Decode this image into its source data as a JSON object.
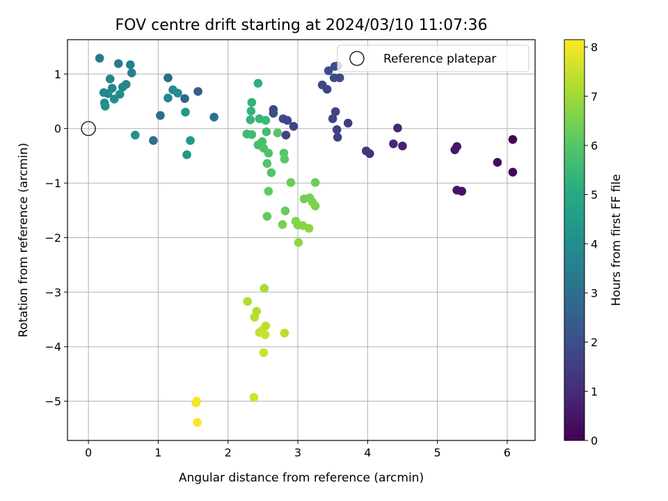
{
  "chart_data": {
    "type": "scatter",
    "title": "FOV centre drift starting at 2024/03/10 11:07:36",
    "xlabel": "Angular distance from reference (arcmin)",
    "ylabel": "Rotation from reference (arcmin)",
    "xlim": [
      -0.3,
      6.4
    ],
    "ylim": [
      -5.72,
      1.63
    ],
    "xticks": [
      0,
      1,
      2,
      3,
      4,
      5,
      6
    ],
    "yticks": [
      -5,
      -4,
      -3,
      -2,
      -1,
      0,
      1
    ],
    "grid": true,
    "legend": {
      "placement": "top-right",
      "entries": [
        "Reference platepar"
      ]
    },
    "colorbar": {
      "label": "Hours from first FF file",
      "range": [
        0,
        8.15
      ],
      "ticks": [
        0,
        1,
        2,
        3,
        4,
        5,
        6,
        7,
        8
      ],
      "colormap": "viridis"
    },
    "reference": {
      "x": 0,
      "y": 0
    },
    "points": [
      {
        "x": 6.08,
        "y": -0.2,
        "c": 0.05
      },
      {
        "x": 6.08,
        "y": -0.8,
        "c": 0.1
      },
      {
        "x": 5.86,
        "y": -0.62,
        "c": 0.2
      },
      {
        "x": 5.35,
        "y": -1.15,
        "c": 0.4
      },
      {
        "x": 5.28,
        "y": -1.13,
        "c": 0.45
      },
      {
        "x": 5.28,
        "y": -0.33,
        "c": 0.5
      },
      {
        "x": 5.25,
        "y": -0.39,
        "c": 0.55
      },
      {
        "x": 4.5,
        "y": -0.32,
        "c": 0.8
      },
      {
        "x": 4.43,
        "y": 0.01,
        "c": 0.9
      },
      {
        "x": 4.37,
        "y": -0.28,
        "c": 1.0
      },
      {
        "x": 4.03,
        "y": -0.46,
        "c": 1.2
      },
      {
        "x": 3.98,
        "y": -0.41,
        "c": 1.3
      },
      {
        "x": 3.72,
        "y": 0.1,
        "c": 1.45
      },
      {
        "x": 3.57,
        "y": -0.16,
        "c": 1.55
      },
      {
        "x": 3.56,
        "y": -0.02,
        "c": 1.6
      },
      {
        "x": 3.5,
        "y": 0.18,
        "c": 1.65
      },
      {
        "x": 3.54,
        "y": 0.31,
        "c": 1.7
      },
      {
        "x": 3.42,
        "y": 0.72,
        "c": 1.75
      },
      {
        "x": 3.35,
        "y": 0.8,
        "c": 1.8
      },
      {
        "x": 3.52,
        "y": 0.93,
        "c": 1.85
      },
      {
        "x": 3.6,
        "y": 0.93,
        "c": 1.9
      },
      {
        "x": 3.44,
        "y": 1.06,
        "c": 1.95
      },
      {
        "x": 3.53,
        "y": 1.14,
        "c": 2.0
      },
      {
        "x": 3.57,
        "y": 1.15,
        "c": 2.05
      },
      {
        "x": 1.57,
        "y": 0.68,
        "c": 2.4
      },
      {
        "x": 1.38,
        "y": 0.55,
        "c": 2.6
      },
      {
        "x": 1.14,
        "y": 0.93,
        "c": 2.8
      },
      {
        "x": 1.03,
        "y": 0.24,
        "c": 2.9
      },
      {
        "x": 0.93,
        "y": -0.22,
        "c": 3.0
      },
      {
        "x": 1.8,
        "y": 0.21,
        "c": 3.1
      },
      {
        "x": 0.16,
        "y": 1.29,
        "c": 3.3
      },
      {
        "x": 0.43,
        "y": 1.19,
        "c": 3.4
      },
      {
        "x": 0.6,
        "y": 1.17,
        "c": 3.5
      },
      {
        "x": 0.62,
        "y": 1.02,
        "c": 3.55
      },
      {
        "x": 0.31,
        "y": 0.91,
        "c": 3.6
      },
      {
        "x": 0.54,
        "y": 0.81,
        "c": 3.65
      },
      {
        "x": 0.49,
        "y": 0.76,
        "c": 3.7
      },
      {
        "x": 0.34,
        "y": 0.74,
        "c": 3.75
      },
      {
        "x": 0.22,
        "y": 0.66,
        "c": 3.8
      },
      {
        "x": 0.28,
        "y": 0.64,
        "c": 3.85
      },
      {
        "x": 0.45,
        "y": 0.63,
        "c": 3.9
      },
      {
        "x": 0.37,
        "y": 0.54,
        "c": 3.95
      },
      {
        "x": 0.23,
        "y": 0.47,
        "c": 4.0
      },
      {
        "x": 0.24,
        "y": 0.41,
        "c": 4.05
      },
      {
        "x": 0.67,
        "y": -0.12,
        "c": 4.1
      },
      {
        "x": 1.14,
        "y": 0.56,
        "c": 3.8
      },
      {
        "x": 1.21,
        "y": 0.71,
        "c": 3.9
      },
      {
        "x": 1.28,
        "y": 0.65,
        "c": 4.0
      },
      {
        "x": 1.39,
        "y": 0.3,
        "c": 4.3
      },
      {
        "x": 1.46,
        "y": -0.22,
        "c": 4.35
      },
      {
        "x": 1.41,
        "y": -0.48,
        "c": 4.4
      },
      {
        "x": 2.43,
        "y": 0.83,
        "c": 5.2
      },
      {
        "x": 2.34,
        "y": 0.48,
        "c": 5.3
      },
      {
        "x": 2.33,
        "y": 0.32,
        "c": 5.35
      },
      {
        "x": 2.32,
        "y": 0.16,
        "c": 5.4
      },
      {
        "x": 2.45,
        "y": 0.18,
        "c": 5.45
      },
      {
        "x": 2.54,
        "y": 0.15,
        "c": 5.5
      },
      {
        "x": 2.27,
        "y": -0.1,
        "c": 5.55
      },
      {
        "x": 2.34,
        "y": -0.11,
        "c": 5.6
      },
      {
        "x": 2.55,
        "y": -0.06,
        "c": 5.65
      },
      {
        "x": 2.43,
        "y": -0.3,
        "c": 5.7
      },
      {
        "x": 2.49,
        "y": -0.24,
        "c": 5.75
      },
      {
        "x": 2.51,
        "y": -0.36,
        "c": 5.8
      },
      {
        "x": 2.58,
        "y": -0.45,
        "c": 5.85
      },
      {
        "x": 2.56,
        "y": -0.64,
        "c": 5.9
      },
      {
        "x": 2.62,
        "y": -0.81,
        "c": 5.95
      },
      {
        "x": 2.71,
        "y": -0.08,
        "c": 6.0
      },
      {
        "x": 2.8,
        "y": -0.45,
        "c": 6.05
      },
      {
        "x": 2.81,
        "y": -0.56,
        "c": 6.1
      },
      {
        "x": 2.58,
        "y": -1.15,
        "c": 6.15
      },
      {
        "x": 2.56,
        "y": -1.61,
        "c": 6.2
      },
      {
        "x": 2.82,
        "y": -1.51,
        "c": 6.25
      },
      {
        "x": 2.9,
        "y": -0.99,
        "c": 6.3
      },
      {
        "x": 3.25,
        "y": -0.99,
        "c": 6.35
      },
      {
        "x": 3.09,
        "y": -1.29,
        "c": 6.4
      },
      {
        "x": 3.17,
        "y": -1.27,
        "c": 6.45
      },
      {
        "x": 3.21,
        "y": -1.35,
        "c": 6.5
      },
      {
        "x": 3.25,
        "y": -1.42,
        "c": 6.55
      },
      {
        "x": 2.78,
        "y": -1.76,
        "c": 6.5
      },
      {
        "x": 2.97,
        "y": -1.7,
        "c": 6.6
      },
      {
        "x": 3.0,
        "y": -1.77,
        "c": 6.65
      },
      {
        "x": 3.07,
        "y": -1.78,
        "c": 6.7
      },
      {
        "x": 3.16,
        "y": -1.83,
        "c": 6.75
      },
      {
        "x": 3.01,
        "y": -2.09,
        "c": 6.8
      },
      {
        "x": 2.52,
        "y": -2.93,
        "c": 7.1
      },
      {
        "x": 2.28,
        "y": -3.17,
        "c": 7.2
      },
      {
        "x": 2.41,
        "y": -3.35,
        "c": 7.25
      },
      {
        "x": 2.38,
        "y": -3.46,
        "c": 7.3
      },
      {
        "x": 2.54,
        "y": -3.62,
        "c": 7.35
      },
      {
        "x": 2.49,
        "y": -3.7,
        "c": 7.4
      },
      {
        "x": 2.45,
        "y": -3.74,
        "c": 7.45
      },
      {
        "x": 2.53,
        "y": -3.78,
        "c": 7.5
      },
      {
        "x": 2.81,
        "y": -3.75,
        "c": 7.3
      },
      {
        "x": 2.51,
        "y": -4.11,
        "c": 7.55
      },
      {
        "x": 2.37,
        "y": -4.93,
        "c": 7.6
      },
      {
        "x": 1.55,
        "y": -5.0,
        "c": 8.0
      },
      {
        "x": 1.54,
        "y": -5.03,
        "c": 8.05
      },
      {
        "x": 1.56,
        "y": -5.39,
        "c": 8.1
      },
      {
        "x": 2.65,
        "y": 0.28,
        "c": 1.9
      },
      {
        "x": 2.65,
        "y": 0.35,
        "c": 1.85
      },
      {
        "x": 2.79,
        "y": 0.18,
        "c": 1.8
      },
      {
        "x": 2.85,
        "y": 0.15,
        "c": 1.75
      },
      {
        "x": 2.94,
        "y": 0.04,
        "c": 1.7
      },
      {
        "x": 2.83,
        "y": -0.12,
        "c": 1.65
      }
    ]
  }
}
